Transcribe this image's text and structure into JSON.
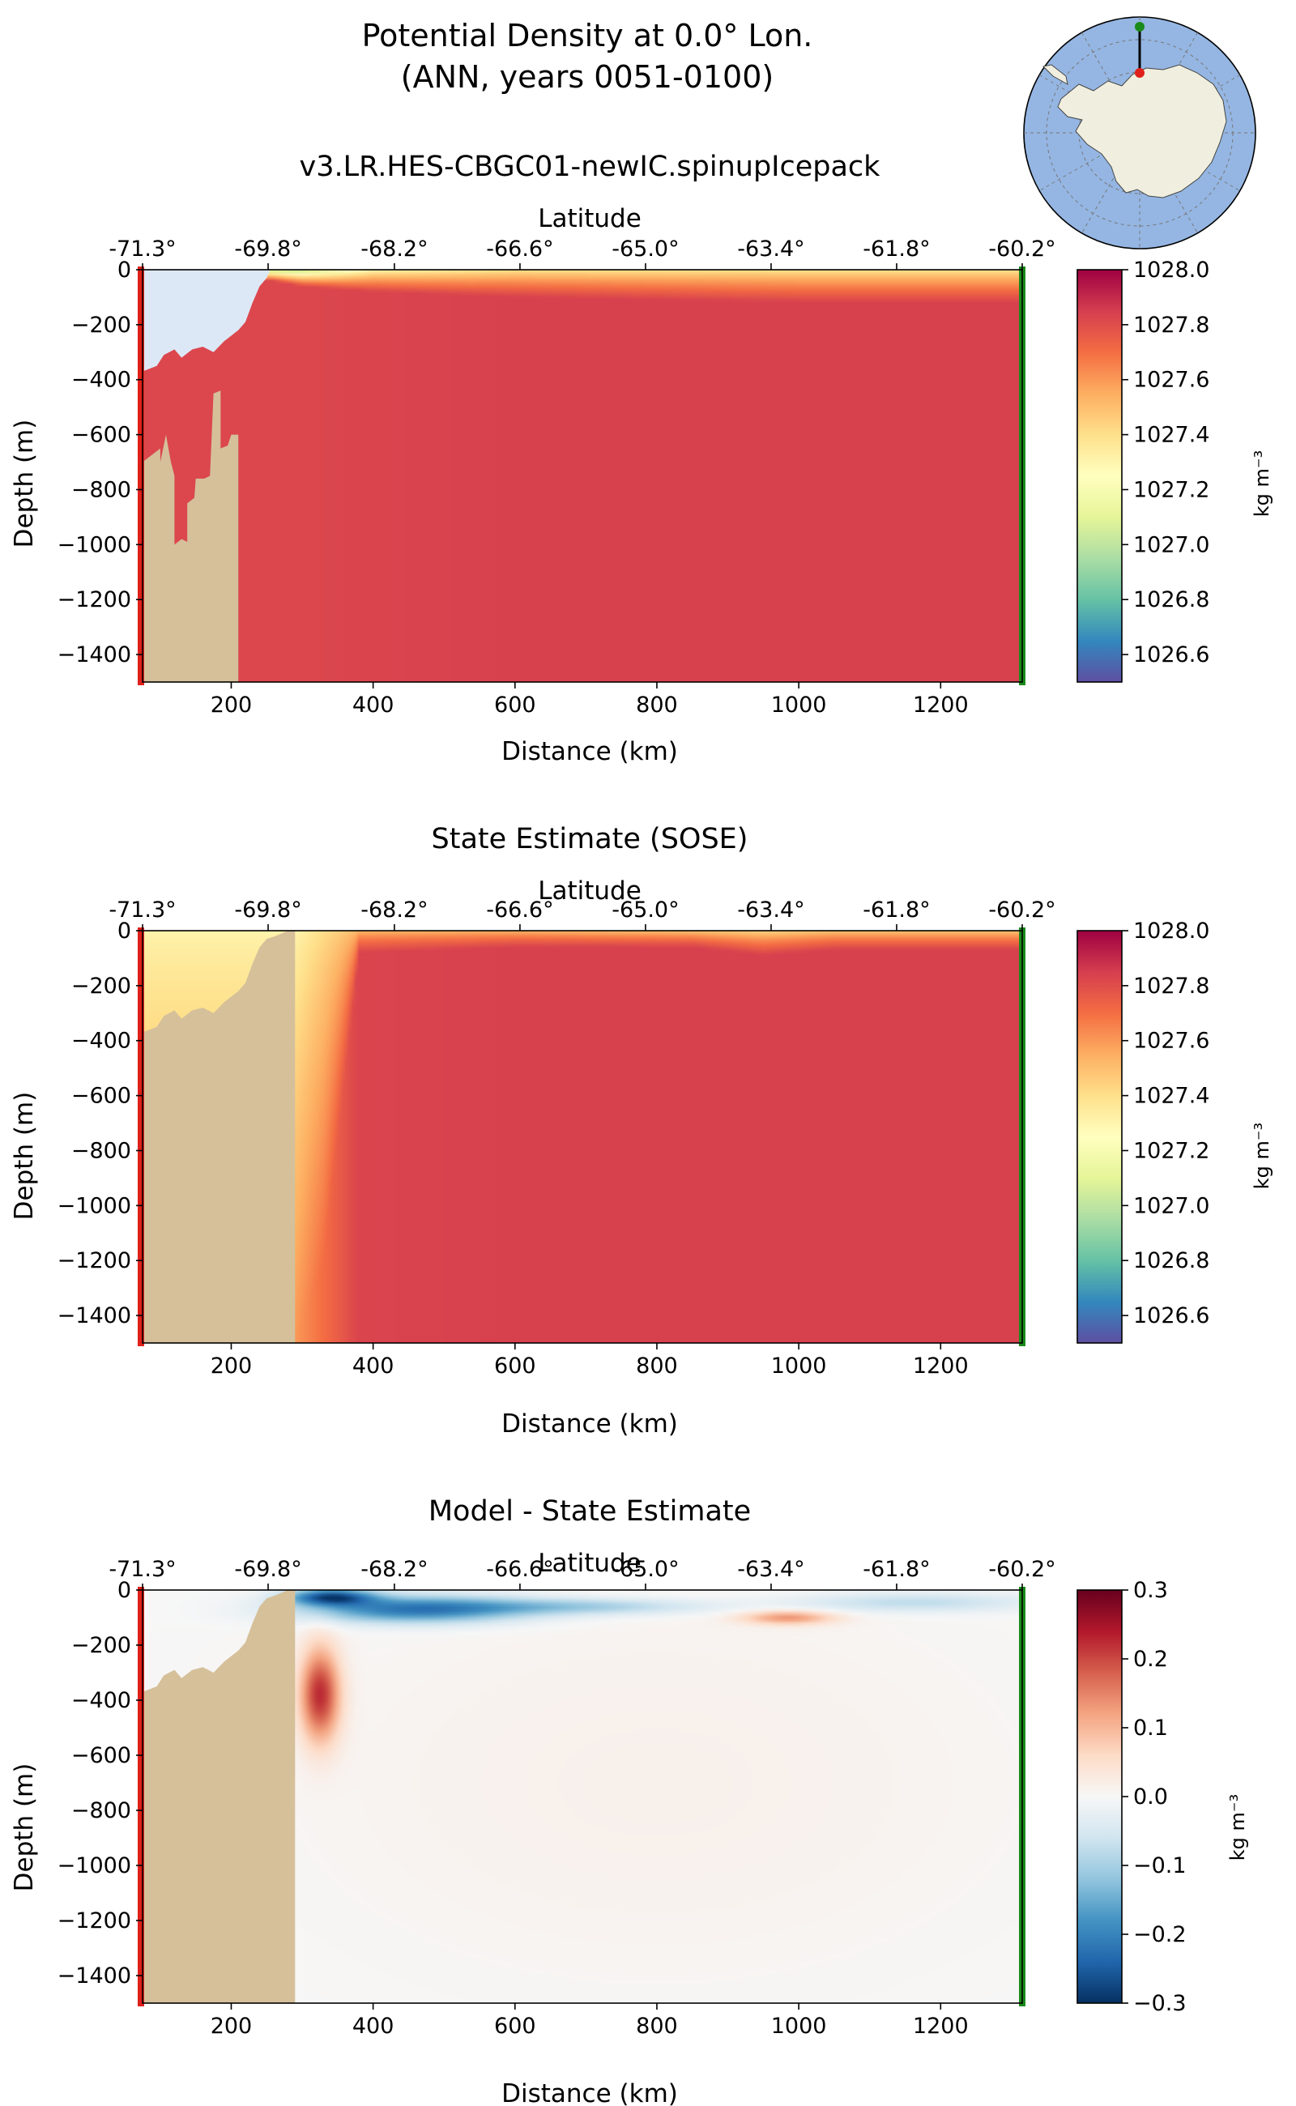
{
  "figure": {
    "title_line1": "Potential Density at 0.0° Lon.",
    "title_line2": "(ANN, years 0051-0100)"
  },
  "inset_map": {
    "projection": "south-polar-stereographic",
    "ocean_color": "#95b6e3",
    "land_color": "#f0efdf",
    "section_start_color": "#e0201a",
    "section_end_color": "#1a8a1a"
  },
  "colors": {
    "ice_shelf_cavity": "#dde8f6",
    "bathymetry": "#d5c09a",
    "start_marker": "#e0201a",
    "end_marker": "#1a8a1a"
  },
  "chart_data": [
    {
      "type": "heatmap",
      "title": "v3.LR.HES-CBGC01-newIC.spinupIcepack",
      "xlabel": "Distance (km)",
      "ylabel": "Depth (m)",
      "top_xlabel": "Latitude",
      "xlim": [
        75,
        1315
      ],
      "ylim": [
        -1500,
        0
      ],
      "x_ticks": [
        200,
        400,
        600,
        800,
        1000,
        1200
      ],
      "y_ticks": [
        0,
        -200,
        -400,
        -600,
        -800,
        -1000,
        -1200,
        -1400
      ],
      "lat_ticks": [
        {
          "label": "-71.3°",
          "x": 75
        },
        {
          "label": "-69.8°",
          "x": 252
        },
        {
          "label": "-68.2°",
          "x": 430
        },
        {
          "label": "-66.6°",
          "x": 607
        },
        {
          "label": "-65.0°",
          "x": 784
        },
        {
          "label": "-63.4°",
          "x": 961
        },
        {
          "label": "-61.8°",
          "x": 1138
        },
        {
          "label": "-60.2°",
          "x": 1315
        }
      ],
      "colorbar": {
        "label": "kg m⁻³",
        "colormap": "Spectral_r",
        "vmin": 1026.5,
        "vmax": 1028.0,
        "ticks": [
          1028.0,
          1027.8,
          1027.6,
          1027.4,
          1027.2,
          1027.0,
          1026.8,
          1026.6
        ],
        "tick_labels": [
          "1028.0",
          "1027.8",
          "1027.6",
          "1027.4",
          "1027.2",
          "1027.0",
          "1026.8",
          "1026.6"
        ]
      },
      "bathymetry": [
        [
          75,
          -700
        ],
        [
          100,
          -650
        ],
        [
          100,
          -700
        ],
        [
          108,
          -600
        ],
        [
          115,
          -700
        ],
        [
          120,
          -750
        ],
        [
          120,
          -1000
        ],
        [
          130,
          -980
        ],
        [
          138,
          -990
        ],
        [
          138,
          -850
        ],
        [
          148,
          -830
        ],
        [
          150,
          -760
        ],
        [
          162,
          -760
        ],
        [
          170,
          -750
        ],
        [
          175,
          -450
        ],
        [
          185,
          -440
        ],
        [
          185,
          -650
        ],
        [
          195,
          -640
        ],
        [
          200,
          -600
        ],
        [
          210,
          -600
        ],
        [
          210,
          -1500
        ],
        [
          258,
          -1500
        ],
        [
          258,
          -600
        ]
      ],
      "ice_shelf": [
        [
          75,
          -370
        ],
        [
          95,
          -350
        ],
        [
          105,
          -310
        ],
        [
          120,
          -290
        ],
        [
          130,
          -320
        ],
        [
          145,
          -290
        ],
        [
          160,
          -280
        ],
        [
          175,
          -300
        ],
        [
          190,
          -260
        ],
        [
          210,
          -220
        ],
        [
          220,
          -190
        ],
        [
          230,
          -120
        ],
        [
          240,
          -60
        ],
        [
          250,
          -30
        ],
        [
          255,
          0
        ]
      ],
      "field_profile": {
        "x": [
          75,
          258,
          300,
          400,
          600,
          800,
          1000,
          1200,
          1315
        ],
        "surface_value": [
          1026.85,
          1026.85,
          1026.9,
          1027.25,
          1027.35,
          1027.35,
          1027.35,
          1027.35,
          1027.35
        ],
        "mixed_layer_depth": [
          40,
          40,
          60,
          80,
          100,
          110,
          120,
          120,
          120
        ],
        "deep_value": [
          1027.82,
          1027.82,
          1027.82,
          1027.83,
          1027.84,
          1027.84,
          1027.84,
          1027.84,
          1027.84
        ]
      }
    },
    {
      "type": "heatmap",
      "title": "State Estimate (SOSE)",
      "xlabel": "Distance (km)",
      "ylabel": "Depth (m)",
      "top_xlabel": "Latitude",
      "xlim": [
        75,
        1315
      ],
      "ylim": [
        -1500,
        0
      ],
      "x_ticks": [
        200,
        400,
        600,
        800,
        1000,
        1200
      ],
      "y_ticks": [
        0,
        -200,
        -400,
        -600,
        -800,
        -1000,
        -1200,
        -1400
      ],
      "lat_ticks": [
        {
          "label": "-71.3°",
          "x": 75
        },
        {
          "label": "-69.8°",
          "x": 252
        },
        {
          "label": "-68.2°",
          "x": 430
        },
        {
          "label": "-66.6°",
          "x": 607
        },
        {
          "label": "-65.0°",
          "x": 784
        },
        {
          "label": "-63.4°",
          "x": 961
        },
        {
          "label": "-61.8°",
          "x": 1138
        },
        {
          "label": "-60.2°",
          "x": 1315
        }
      ],
      "colorbar": {
        "label": "kg m⁻³",
        "colormap": "Spectral_r",
        "vmin": 1026.5,
        "vmax": 1028.0,
        "ticks": [
          1028.0,
          1027.8,
          1027.6,
          1027.4,
          1027.2,
          1027.0,
          1026.8,
          1026.6
        ],
        "tick_labels": [
          "1028.0",
          "1027.8",
          "1027.6",
          "1027.4",
          "1027.2",
          "1027.0",
          "1026.8",
          "1026.6"
        ]
      },
      "bathymetry": [
        [
          75,
          -370
        ],
        [
          95,
          -350
        ],
        [
          105,
          -310
        ],
        [
          120,
          -290
        ],
        [
          130,
          -320
        ],
        [
          145,
          -290
        ],
        [
          160,
          -280
        ],
        [
          175,
          -300
        ],
        [
          190,
          -260
        ],
        [
          210,
          -220
        ],
        [
          220,
          -190
        ],
        [
          230,
          -120
        ],
        [
          240,
          -60
        ],
        [
          250,
          -30
        ],
        [
          262,
          -20
        ],
        [
          280,
          0
        ],
        [
          290,
          0
        ],
        [
          290,
          -1500
        ]
      ],
      "ice_shelf": [],
      "field_profile": {
        "x": [
          75,
          290,
          330,
          380,
          600,
          850,
          950,
          1050,
          1200,
          1315
        ],
        "surface_value": [
          1027.3,
          1027.3,
          1027.4,
          1027.5,
          1027.5,
          1027.45,
          1027.4,
          1027.45,
          1027.45,
          1027.45
        ],
        "mixed_layer_depth": [
          1500,
          1500,
          1200,
          80,
          60,
          60,
          90,
          70,
          70,
          70
        ],
        "deep_value": [
          1027.6,
          1027.6,
          1027.7,
          1027.83,
          1027.84,
          1027.84,
          1027.84,
          1027.84,
          1027.84,
          1027.84
        ]
      }
    },
    {
      "type": "heatmap",
      "title": "Model - State Estimate",
      "xlabel": "Distance (km)",
      "ylabel": "Depth (m)",
      "top_xlabel": "Latitude",
      "xlim": [
        75,
        1315
      ],
      "ylim": [
        -1500,
        0
      ],
      "x_ticks": [
        200,
        400,
        600,
        800,
        1000,
        1200
      ],
      "y_ticks": [
        0,
        -200,
        -400,
        -600,
        -800,
        -1000,
        -1200,
        -1400
      ],
      "lat_ticks": [
        {
          "label": "-71.3°",
          "x": 75
        },
        {
          "label": "-69.8°",
          "x": 252
        },
        {
          "label": "-68.2°",
          "x": 430
        },
        {
          "label": "-66.6°",
          "x": 607
        },
        {
          "label": "-65.0°",
          "x": 784
        },
        {
          "label": "-63.4°",
          "x": 961
        },
        {
          "label": "-61.8°",
          "x": 1138
        },
        {
          "label": "-60.2°",
          "x": 1315
        }
      ],
      "colorbar": {
        "label": "kg m⁻³",
        "colormap": "RdBu_r",
        "vmin": -0.3,
        "vmax": 0.3,
        "ticks": [
          0.3,
          0.2,
          0.1,
          0.0,
          -0.1,
          -0.2,
          -0.3
        ],
        "tick_labels": [
          "0.3",
          "0.2",
          "0.1",
          "0.0",
          "−0.1",
          "−0.2",
          "−0.3"
        ]
      },
      "bathymetry": [
        [
          75,
          -370
        ],
        [
          95,
          -350
        ],
        [
          105,
          -310
        ],
        [
          120,
          -290
        ],
        [
          130,
          -320
        ],
        [
          145,
          -290
        ],
        [
          160,
          -280
        ],
        [
          175,
          -300
        ],
        [
          190,
          -260
        ],
        [
          210,
          -220
        ],
        [
          220,
          -190
        ],
        [
          230,
          -120
        ],
        [
          240,
          -60
        ],
        [
          250,
          -30
        ],
        [
          262,
          -20
        ],
        [
          280,
          0
        ],
        [
          290,
          0
        ],
        [
          290,
          -1500
        ]
      ],
      "ice_shelf": [],
      "anomaly_features": [
        {
          "x": 325,
          "depth": 380,
          "sx": 28,
          "sz": 170,
          "value": 0.22
        },
        {
          "x": 460,
          "depth": 70,
          "sx": 160,
          "sz": 50,
          "value": -0.22
        },
        {
          "x": 340,
          "depth": 25,
          "sx": 60,
          "sz": 30,
          "value": -0.25
        },
        {
          "x": 700,
          "depth": 60,
          "sx": 170,
          "sz": 30,
          "value": -0.1
        },
        {
          "x": 985,
          "depth": 100,
          "sx": 65,
          "sz": 25,
          "value": 0.13
        },
        {
          "x": 1160,
          "depth": 45,
          "sx": 170,
          "sz": 35,
          "value": -0.08
        },
        {
          "x": 800,
          "depth": 700,
          "sx": 500,
          "sz": 700,
          "value": 0.015
        }
      ]
    }
  ]
}
